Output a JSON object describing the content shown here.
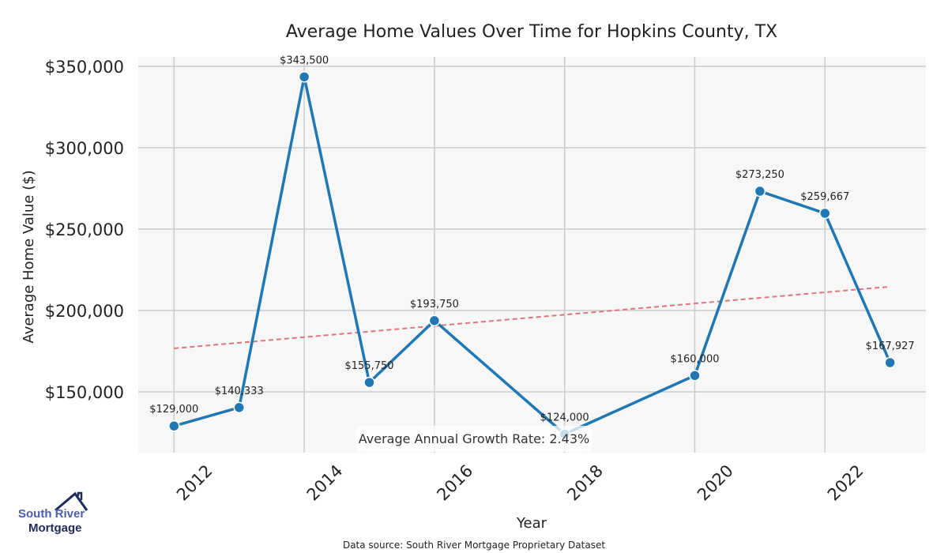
{
  "chart_data": {
    "type": "line",
    "title": "Average Home Values Over Time for Hopkins County, TX",
    "xlabel": "Year",
    "ylabel": "Average Home Value ($)",
    "x": [
      2012,
      2013,
      2014,
      2015,
      2016,
      2018,
      2020,
      2021,
      2022,
      2023
    ],
    "values": [
      129000,
      140333,
      343500,
      155750,
      193750,
      124000,
      160000,
      273250,
      259667,
      167927
    ],
    "data_labels": [
      "$129,000",
      "$140,333",
      "$343,500",
      "$155,750",
      "$193,750",
      "$124,000",
      "$160,000",
      "$273,250",
      "$259,667",
      "$167,927"
    ],
    "xticks": [
      2012,
      2014,
      2016,
      2018,
      2020,
      2022
    ],
    "yticks": [
      150000,
      200000,
      250000,
      300000,
      350000
    ],
    "ytick_labels": [
      "$150,000",
      "$200,000",
      "$250,000",
      "$300,000",
      "$350,000"
    ],
    "xlim": [
      2011.45,
      2023.55
    ],
    "ylim": [
      112600,
      355800
    ],
    "grid": true,
    "trend": {
      "name": "Linear trend",
      "x": [
        2012,
        2023
      ],
      "y": [
        176700,
        214600
      ]
    },
    "annotation": "Average Annual Growth Rate: 2.43%",
    "source": "Data source: South River Mortgage Proprietary Dataset",
    "colors": {
      "line": "#1f77b4",
      "trend": "#d9777d",
      "grid": "#cccccc",
      "plot_bg": "#f7f7f7"
    }
  },
  "logo": {
    "line1": "South River",
    "line2": "Mortgage"
  }
}
